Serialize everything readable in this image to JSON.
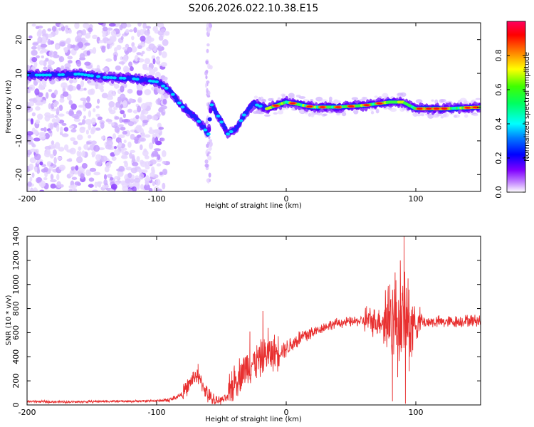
{
  "title": "S206.2026.022.10.38.E15",
  "chart_data": [
    {
      "type": "heatmap",
      "name": "spectrogram",
      "xlabel": "Height of straight line (km)",
      "ylabel": "Frequency (Hz)",
      "xlim": [
        -200,
        150
      ],
      "ylim": [
        -25,
        25
      ],
      "xticks": [
        -200,
        -100,
        0,
        100
      ],
      "yticks": [
        -20,
        -10,
        0,
        10,
        20
      ],
      "colorbar": {
        "label": "Normalized spectral amplitude",
        "range": [
          0.0,
          1.0
        ],
        "ticks": [
          0.0,
          0.2,
          0.4,
          0.6,
          0.8
        ],
        "colors": [
          "#ffffff",
          "#c080ff",
          "#8000ff",
          "#0000ff",
          "#00c0ff",
          "#00ffff",
          "#00ff40",
          "#40ff00",
          "#ffff00",
          "#ff8000",
          "#ff0000",
          "#ff0080"
        ]
      },
      "ridge": [
        {
          "x": -200,
          "f": 9.5
        },
        {
          "x": -180,
          "f": 9.5
        },
        {
          "x": -160,
          "f": 9.8
        },
        {
          "x": -140,
          "f": 8.8
        },
        {
          "x": -120,
          "f": 8.5
        },
        {
          "x": -100,
          "f": 7.5
        },
        {
          "x": -90,
          "f": 5
        },
        {
          "x": -80,
          "f": 0
        },
        {
          "x": -70,
          "f": -3
        },
        {
          "x": -60,
          "f": -8
        },
        {
          "x": -58,
          "f": 1
        },
        {
          "x": -52,
          "f": -3
        },
        {
          "x": -45,
          "f": -8
        },
        {
          "x": -38,
          "f": -6
        },
        {
          "x": -32,
          "f": -2
        },
        {
          "x": -25,
          "f": 1
        },
        {
          "x": -15,
          "f": -0.5
        },
        {
          "x": 0,
          "f": 1.5
        },
        {
          "x": 20,
          "f": 0
        },
        {
          "x": 40,
          "f": 0
        },
        {
          "x": 60,
          "f": 0.5
        },
        {
          "x": 80,
          "f": 1.5
        },
        {
          "x": 90,
          "f": 1.5
        },
        {
          "x": 100,
          "f": -0.5
        },
        {
          "x": 120,
          "f": -0.5
        },
        {
          "x": 150,
          "f": 0
        }
      ]
    },
    {
      "type": "line",
      "name": "snr",
      "xlabel": "Height of straight line (km)",
      "ylabel": "SNR (10 * v/v)",
      "xlim": [
        -200,
        150
      ],
      "ylim": [
        0,
        1400
      ],
      "xticks": [
        -200,
        -100,
        0,
        100
      ],
      "yticks": [
        0,
        200,
        400,
        600,
        800,
        1000,
        1200,
        1400
      ],
      "color": "#e83030",
      "series": [
        {
          "name": "SNR",
          "x": [
            -200,
            -180,
            -160,
            -140,
            -120,
            -100,
            -90,
            -80,
            -75,
            -70,
            -65,
            -60,
            -55,
            -50,
            -45,
            -40,
            -30,
            -20,
            -15,
            -10,
            0,
            10,
            20,
            30,
            40,
            50,
            60,
            70,
            75,
            80,
            85,
            90,
            93,
            96,
            100,
            110,
            120,
            130,
            140,
            150
          ],
          "y": [
            30,
            25,
            25,
            30,
            30,
            35,
            40,
            90,
            170,
            250,
            180,
            70,
            35,
            40,
            60,
            200,
            320,
            380,
            420,
            430,
            470,
            550,
            600,
            650,
            680,
            690,
            700,
            690,
            700,
            720,
            710,
            680,
            700,
            690,
            680,
            690,
            690,
            690,
            700,
            700
          ]
        }
      ],
      "spikes": [
        {
          "x": -68,
          "y": 340
        },
        {
          "x": -42,
          "y": 280
        },
        {
          "x": -28,
          "y": 610
        },
        {
          "x": -18,
          "y": 780
        },
        {
          "x": -14,
          "y": 640
        },
        {
          "x": -8,
          "y": 500
        },
        {
          "x": 62,
          "y": 820
        },
        {
          "x": 80,
          "y": 1000
        },
        {
          "x": 84,
          "y": 1100
        },
        {
          "x": 88,
          "y": 1200
        },
        {
          "x": 91,
          "y": 1400
        },
        {
          "x": 94,
          "y": 1050
        }
      ],
      "dips": [
        {
          "x": 82,
          "y": 30
        },
        {
          "x": 86,
          "y": 230
        },
        {
          "x": 92,
          "y": 10
        },
        {
          "x": 95,
          "y": 280
        }
      ]
    }
  ]
}
